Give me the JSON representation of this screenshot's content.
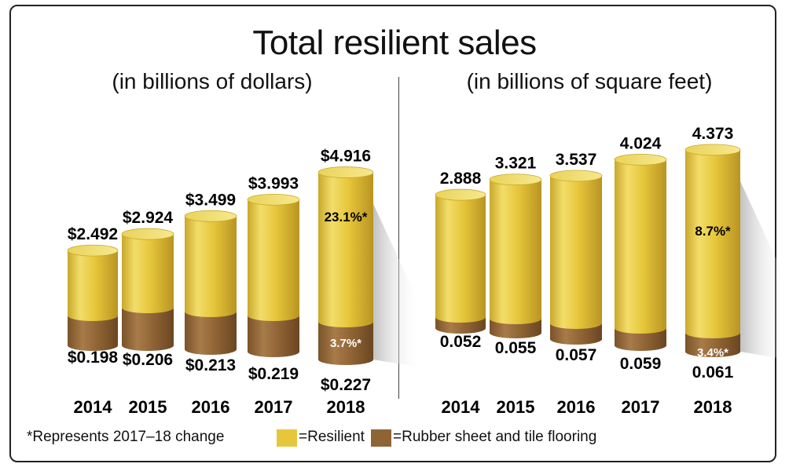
{
  "title": "Total resilient sales",
  "footnote": "*Represents 2017–18 change",
  "legend": [
    {
      "label": "=Resilient",
      "color": "#e6c63a"
    },
    {
      "label": "=Rubber sheet and tile flooring",
      "color": "#8f6435"
    }
  ],
  "chart_data": [
    {
      "type": "bar",
      "subtitle": "(in billions of dollars)",
      "categories": [
        "2014",
        "2015",
        "2016",
        "2017",
        "2018"
      ],
      "series": [
        {
          "name": "Resilient",
          "values": [
            2.492,
            2.924,
            3.499,
            3.993,
            4.916
          ],
          "labels": [
            "$2.492",
            "$2.924",
            "$3.499",
            "$3.993",
            "$4.916"
          ]
        },
        {
          "name": "Rubber sheet and tile flooring",
          "values": [
            0.198,
            0.206,
            0.213,
            0.219,
            0.227
          ],
          "labels": [
            "$0.198",
            "$0.206",
            "$0.213",
            "$0.219",
            "$0.227"
          ]
        }
      ],
      "annotations": {
        "resilient_change": "23.1%*",
        "rubber_change": "3.7%*"
      }
    },
    {
      "type": "bar",
      "subtitle": "(in billions of square feet)",
      "categories": [
        "2014",
        "2015",
        "2016",
        "2017",
        "2018"
      ],
      "series": [
        {
          "name": "Resilient",
          "values": [
            2.888,
            3.321,
            3.537,
            4.024,
            4.373
          ],
          "labels": [
            "2.888",
            "3.321",
            "3.537",
            "4.024",
            "4.373"
          ]
        },
        {
          "name": "Rubber sheet and tile flooring",
          "values": [
            0.052,
            0.055,
            0.057,
            0.059,
            0.061
          ],
          "labels": [
            "0.052",
            "0.055",
            "0.057",
            "0.059",
            "0.061"
          ]
        }
      ],
      "annotations": {
        "resilient_change": "8.7%*",
        "rubber_change": "3.4%*"
      }
    }
  ]
}
